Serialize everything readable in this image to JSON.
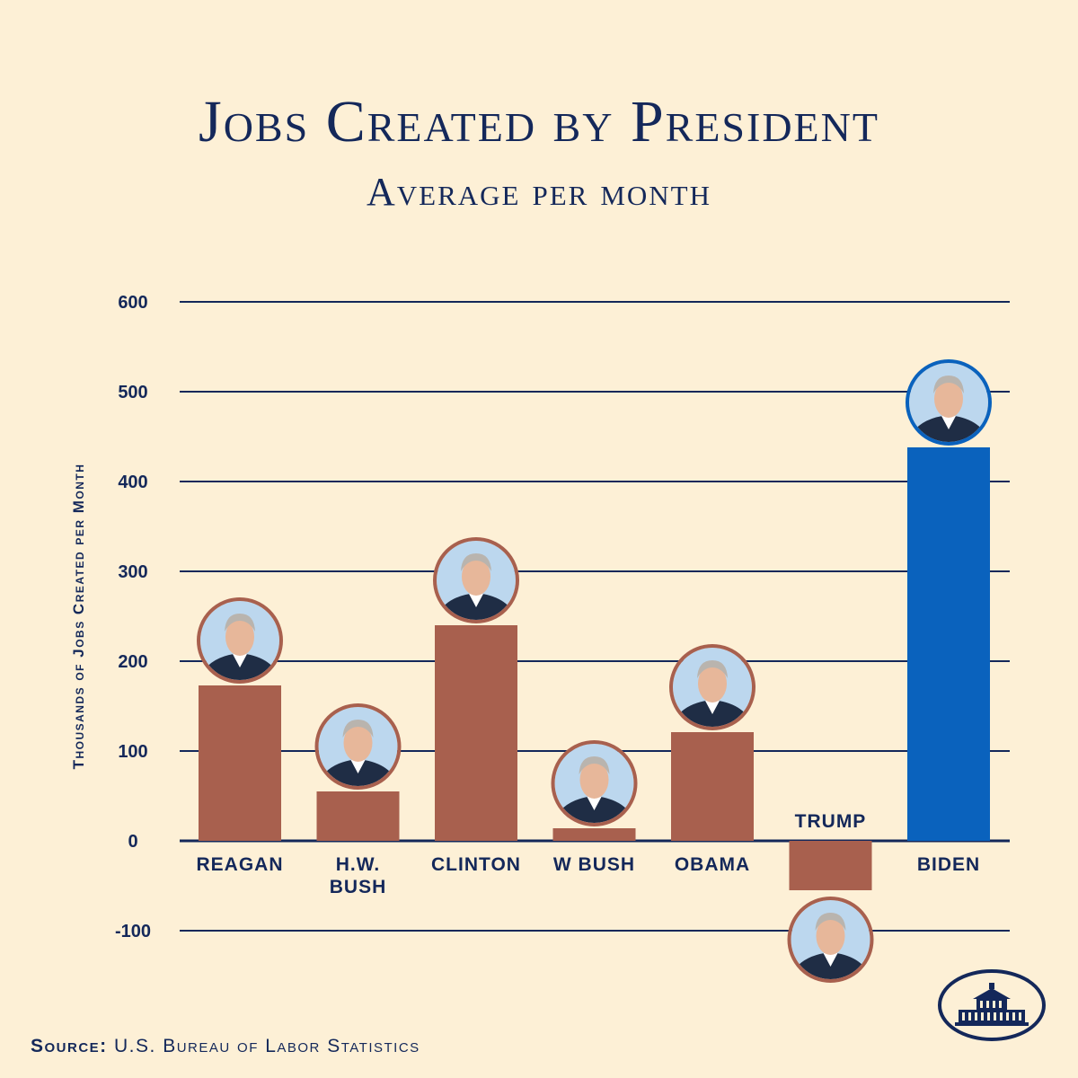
{
  "page": {
    "title": "Jobs Created by President",
    "subtitle": "Average per month",
    "source_label": "Source:",
    "source_text": "U.S. Bureau of Labor Statistics",
    "seal_icon": "white-house-icon"
  },
  "chart_data": {
    "type": "bar",
    "title": "Jobs Created by President",
    "subtitle": "Average per month",
    "xlabel": "",
    "ylabel": "Thousands of Jobs Created per Month",
    "ylim": [
      -100,
      600
    ],
    "yticks": [
      600,
      500,
      400,
      300,
      200,
      100,
      0,
      -100
    ],
    "grid": true,
    "categories": [
      "Reagan",
      "H.W. Bush",
      "Clinton",
      "W Bush",
      "Obama",
      "Trump",
      "Biden"
    ],
    "category_display": [
      [
        "REAGAN"
      ],
      [
        "H.W.",
        "BUSH"
      ],
      [
        "CLINTON"
      ],
      [
        "W BUSH"
      ],
      [
        "OBAMA"
      ],
      [
        "TRUMP"
      ],
      [
        "BIDEN"
      ]
    ],
    "values": [
      173,
      55,
      240,
      14,
      121,
      -55,
      438
    ],
    "colors": [
      "#a8604e",
      "#a8604e",
      "#a8604e",
      "#a8604e",
      "#a8604e",
      "#a8604e",
      "#0a62bd"
    ],
    "portrait_icons": [
      "reagan-portrait-icon",
      "hw-bush-portrait-icon",
      "clinton-portrait-icon",
      "w-bush-portrait-icon",
      "obama-portrait-icon",
      "trump-portrait-icon",
      "biden-portrait-icon"
    ]
  }
}
